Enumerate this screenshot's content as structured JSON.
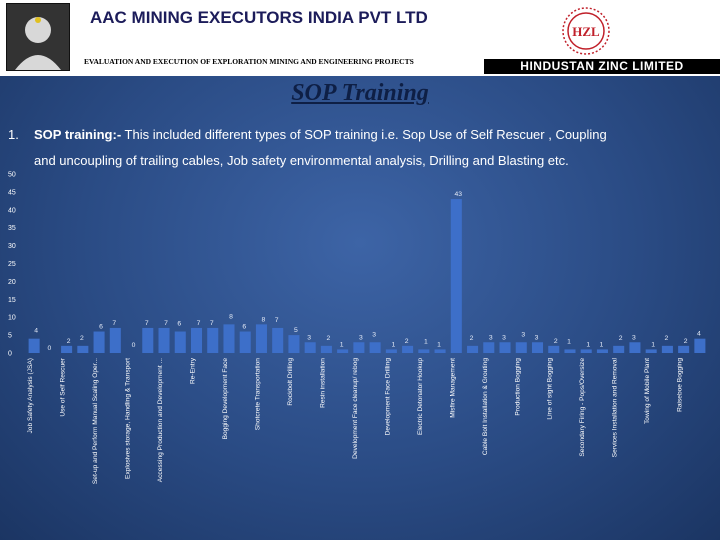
{
  "header": {
    "company": "AAC MINING EXECUTORS INDIA PVT LTD",
    "subtitle": "EVALUATION AND EXECUTION OF EXPLORATION MINING AND ENGINEERING PROJECTS",
    "client": "HINDUSTAN ZINC LIMITED",
    "client_logo_text": "HZL"
  },
  "slide": {
    "title": "SOP Training",
    "point_number": "1.",
    "point_heading": "SOP training:-",
    "point_text": " This included different types of SOP training i.e. Sop Use of Self Rescuer , Coupling",
    "point_text_2": "and uncoupling of  trailing cables, Job safety environmental analysis, Drilling and Blasting etc."
  },
  "colors": {
    "bar": "#3d6fc9",
    "background": "#2a4b84"
  },
  "chart_data": {
    "type": "bar",
    "ylim": [
      0,
      50
    ],
    "yticks": [
      0,
      5,
      10,
      15,
      20,
      25,
      30,
      35,
      40,
      45,
      50
    ],
    "grid": false,
    "values": [
      4,
      0,
      2,
      2,
      6,
      7,
      0,
      7,
      7,
      6,
      7,
      7,
      8,
      6,
      8,
      7,
      5,
      3,
      2,
      1,
      3,
      3,
      1,
      2,
      1,
      1,
      43,
      2,
      3,
      3,
      3,
      3,
      2,
      1,
      1,
      1,
      2,
      3,
      1,
      2,
      2,
      4
    ],
    "labels": [
      "Job Safety Analysis (JSA)",
      "",
      "Use of Self Rescuer",
      "",
      "Set-up and Perform Manual Scaling Oper...",
      "",
      "Explosives storage, Handling & Transport",
      "",
      "Accessing Production and Development ...",
      "",
      "Re-Entry",
      "",
      "Bogging Development Face",
      "",
      "Shotcrete Transportation",
      "",
      "Rockbolt Drilling",
      "",
      "Resin installation",
      "",
      "Development Face cleanup/ rebog",
      "",
      "Development Face Drilling",
      "",
      "Electric Detonator Hookup",
      "",
      "Misfire Management",
      "",
      "Cable Bolt Installation & Grouting",
      "",
      "Production Bogging",
      "",
      "Line of sight Bogging",
      "",
      "Secondary Firing - Pops/Oversize",
      "",
      "Services Installation and Removal",
      "",
      "Towing of Mobile Plant",
      "",
      "Raiseboe Bogging",
      ""
    ]
  }
}
